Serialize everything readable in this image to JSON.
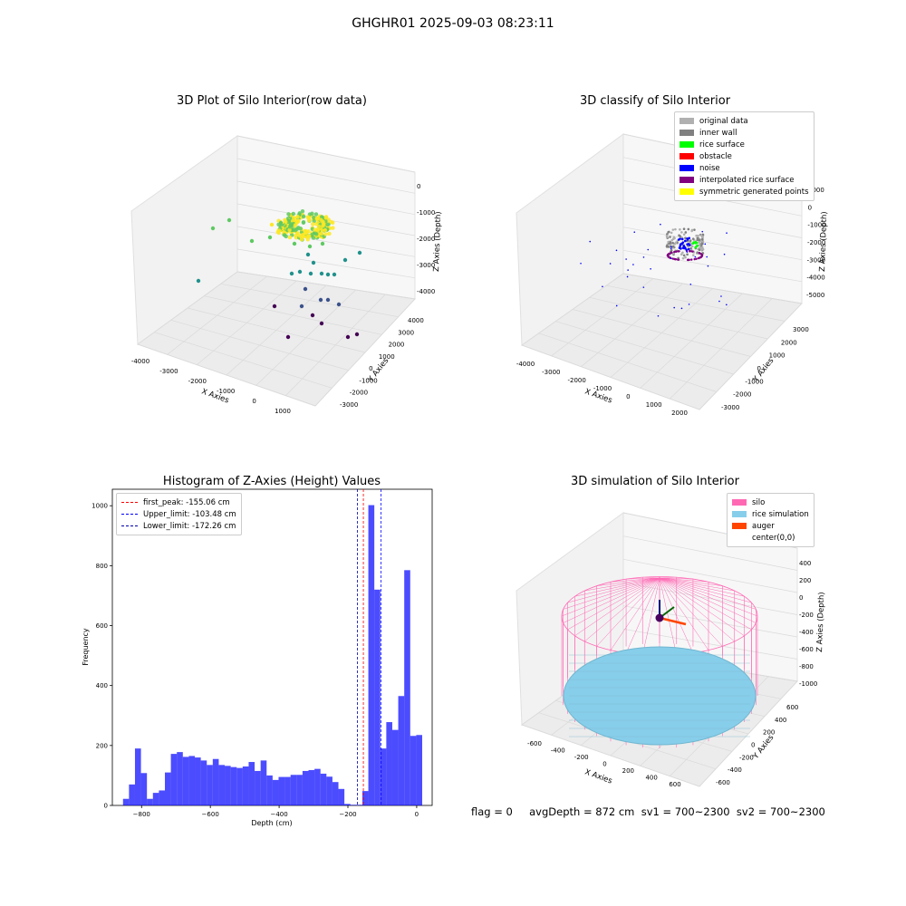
{
  "figure": {
    "suptitle": "GHGHR01 2025-09-03 08:23:11",
    "status_text": "flag = 0     avgDepth = 872 cm  sv1 = 700~2300  sv2 = 700~2300"
  },
  "chart_data": [
    {
      "id": "raw",
      "type": "scatter",
      "title": "3D Plot of Silo Interior(row data)",
      "xlabel": "X Axies",
      "ylabel": "Y Axies",
      "zlabel": "Z Axies (Depth)",
      "x_ticks": [
        "-4000",
        "-3000",
        "-2000",
        "-1000",
        "0",
        "1000"
      ],
      "y_ticks": [
        "4000",
        "3000",
        "2000",
        "1000",
        "0",
        "-1000",
        "-2000",
        "-3000"
      ],
      "z_ticks": [
        "0",
        "-1000",
        "-2000",
        "-3000",
        "-4000"
      ],
      "colormap": [
        "#440154",
        "#3b528b",
        "#21918c",
        "#5ec962",
        "#fde725"
      ]
    },
    {
      "id": "classify",
      "type": "scatter",
      "title": "3D classify of Silo Interior",
      "xlabel": "X Axies",
      "ylabel": "Y Axies",
      "zlabel": "Z Axies (Depth)",
      "x_ticks": [
        "-4000",
        "-3000",
        "-2000",
        "-1000",
        "0",
        "1000",
        "2000"
      ],
      "y_ticks": [
        "3000",
        "2000",
        "1000",
        "0",
        "-1000",
        "-2000",
        "-3000"
      ],
      "z_ticks": [
        "1000",
        "0",
        "-1000",
        "-2000",
        "-3000",
        "-4000",
        "-5000"
      ],
      "legend": [
        {
          "label": "original data",
          "color": "#b0b0b0"
        },
        {
          "label": "inner wall",
          "color": "#808080"
        },
        {
          "label": "rice surface",
          "color": "#00ff00"
        },
        {
          "label": "obstacle",
          "color": "#ff0000"
        },
        {
          "label": "noise",
          "color": "#0000ff"
        },
        {
          "label": "interpolated rice surface",
          "color": "#800080"
        },
        {
          "label": "symmetric generated points",
          "color": "#ffff00"
        }
      ]
    },
    {
      "id": "hist",
      "type": "bar",
      "title": "Histogram of Z-Axies (Height) Values",
      "xlabel": "Depth (cm)",
      "ylabel": "Frequency",
      "xlim": [
        -885,
        45
      ],
      "ylim": [
        0,
        1055
      ],
      "x_ticks": [
        -800,
        -600,
        -400,
        -200,
        0
      ],
      "y_ticks": [
        0,
        200,
        400,
        600,
        800,
        1000
      ],
      "bar_color": "#0000ff",
      "bin_width": 17.4,
      "bin_starts": [
        -854.0,
        -836.6,
        -819.2,
        -801.8,
        -784.4,
        -767.0,
        -749.6,
        -732.2,
        -714.8,
        -697.4,
        -680.0,
        -662.6,
        -645.2,
        -627.8,
        -610.4,
        -593.0,
        -575.6,
        -558.2,
        -540.8,
        -523.4,
        -506.0,
        -488.6,
        -471.2,
        -453.8,
        -436.4,
        -419.0,
        -401.6,
        -384.2,
        -366.8,
        -349.4,
        -332.0,
        -314.6,
        -297.2,
        -279.8,
        -262.4,
        -245.0,
        -227.6,
        -210.2,
        -192.8,
        -175.4,
        -158.0,
        -140.6,
        -123.2,
        -105.8,
        -88.4,
        -71.0,
        -53.6,
        -36.2,
        -18.8,
        -1.4
      ],
      "values": [
        22,
        70,
        190,
        108,
        22,
        42,
        50,
        110,
        172,
        178,
        162,
        165,
        160,
        150,
        135,
        155,
        135,
        132,
        128,
        125,
        130,
        145,
        115,
        150,
        100,
        85,
        95,
        95,
        102,
        102,
        115,
        118,
        122,
        106,
        96,
        78,
        55,
        5,
        2,
        2,
        48,
        1002,
        720,
        190,
        278,
        252,
        365,
        785,
        232,
        235
      ],
      "vlines": [
        {
          "label": "first_peak: -155.06 cm",
          "x": -155.06,
          "color": "#ff0000"
        },
        {
          "label": "Upper_limit: -103.48 cm",
          "x": -103.48,
          "color": "#0000ff"
        },
        {
          "label": "Lower_limit: -172.26 cm",
          "x": -172.26,
          "color": "#0000aa"
        }
      ]
    },
    {
      "id": "sim",
      "type": "scatter",
      "title": "3D simulation of Silo Interior",
      "xlabel": "X Axies",
      "ylabel": "Y Axies",
      "zlabel": "Z Axies (Depth)",
      "x_ticks": [
        "-600",
        "-400",
        "-200",
        "0",
        "200",
        "400",
        "600"
      ],
      "y_ticks": [
        "600",
        "400",
        "200",
        "0",
        "-200",
        "-400",
        "-600"
      ],
      "z_ticks": [
        "400",
        "200",
        "0",
        "-200",
        "-400",
        "-600",
        "-800",
        "-1000"
      ],
      "legend": [
        {
          "label": "silo",
          "color": "#ff69b4"
        },
        {
          "label": "rice simulation",
          "color": "#87ceeb"
        },
        {
          "label": "auger",
          "color": "#ff4500"
        },
        {
          "label": "center(0,0)",
          "color": ""
        }
      ]
    }
  ]
}
